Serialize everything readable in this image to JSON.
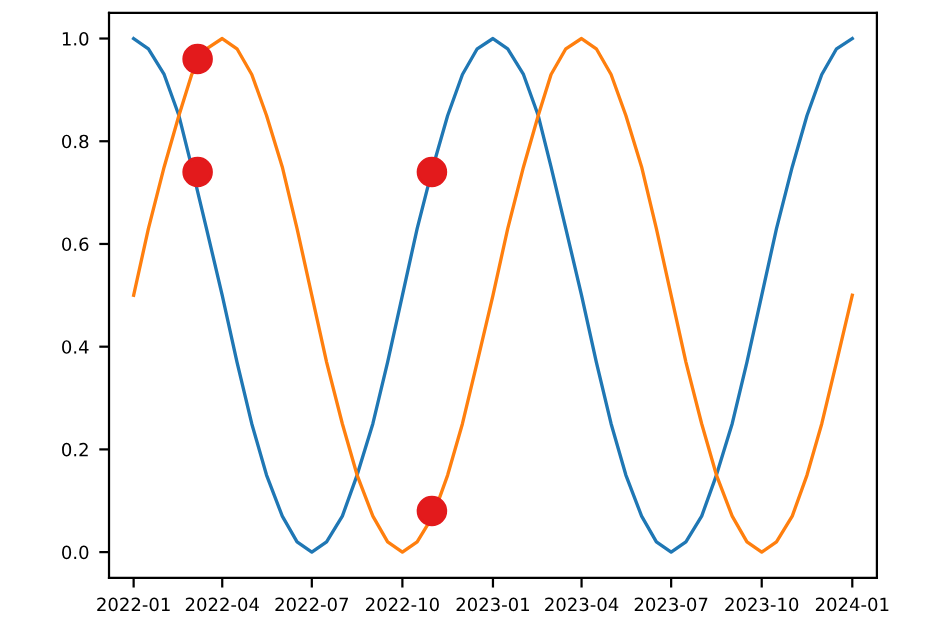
{
  "chart_data": {
    "type": "line",
    "x": [
      "2022-01-01",
      "2022-01-16",
      "2022-02-01",
      "2022-02-16",
      "2022-03-01",
      "2022-03-16",
      "2022-04-01",
      "2022-04-16",
      "2022-05-01",
      "2022-05-16",
      "2022-06-01",
      "2022-06-16",
      "2022-07-01",
      "2022-07-16",
      "2022-08-01",
      "2022-08-16",
      "2022-09-01",
      "2022-09-16",
      "2022-10-01",
      "2022-10-16",
      "2022-11-01",
      "2022-11-16",
      "2022-12-01",
      "2022-12-16",
      "2023-01-01",
      "2023-01-16",
      "2023-02-01",
      "2023-02-16",
      "2023-03-01",
      "2023-03-16",
      "2023-04-01",
      "2023-04-16",
      "2023-05-01",
      "2023-05-16",
      "2023-06-01",
      "2023-06-16",
      "2023-07-01",
      "2023-07-16",
      "2023-08-01",
      "2023-08-16",
      "2023-09-01",
      "2023-09-16",
      "2023-10-01",
      "2023-10-16",
      "2023-11-01",
      "2023-11-16",
      "2023-12-01",
      "2023-12-16",
      "2024-01-01"
    ],
    "series": [
      {
        "color": "#1f77b4",
        "values": [
          1.0,
          0.98,
          0.93,
          0.85,
          0.75,
          0.63,
          0.5,
          0.37,
          0.25,
          0.15,
          0.07,
          0.02,
          0.0,
          0.02,
          0.07,
          0.15,
          0.25,
          0.37,
          0.5,
          0.63,
          0.75,
          0.85,
          0.93,
          0.98,
          1.0,
          0.98,
          0.93,
          0.85,
          0.75,
          0.63,
          0.5,
          0.37,
          0.25,
          0.15,
          0.07,
          0.02,
          0.0,
          0.02,
          0.07,
          0.15,
          0.25,
          0.37,
          0.5,
          0.63,
          0.75,
          0.85,
          0.93,
          0.98,
          1.0
        ]
      },
      {
        "color": "#ff7f0e",
        "values": [
          0.5,
          0.63,
          0.75,
          0.85,
          0.93,
          0.98,
          1.0,
          0.98,
          0.93,
          0.85,
          0.75,
          0.63,
          0.5,
          0.37,
          0.25,
          0.15,
          0.07,
          0.02,
          0.0,
          0.02,
          0.07,
          0.15,
          0.25,
          0.37,
          0.5,
          0.63,
          0.75,
          0.85,
          0.93,
          0.98,
          1.0,
          0.98,
          0.93,
          0.85,
          0.75,
          0.63,
          0.5,
          0.37,
          0.25,
          0.15,
          0.07,
          0.02,
          0.0,
          0.02,
          0.07,
          0.15,
          0.25,
          0.37,
          0.5
        ]
      },
      {
        "type": "scatter",
        "color": "#e31a1c",
        "x": [
          "2022-03-07",
          "2022-03-07",
          "2022-10-31",
          "2022-10-31"
        ],
        "values": [
          0.96,
          0.74,
          0.74,
          0.08
        ]
      }
    ],
    "xlim": [
      "2021-12-07",
      "2024-01-26"
    ],
    "xticks": [
      "2022-01",
      "2022-04",
      "2022-07",
      "2022-10",
      "2023-01",
      "2023-04",
      "2023-07",
      "2023-10",
      "2024-01"
    ],
    "ylim": [
      -0.05,
      1.05
    ],
    "yticks": [
      {
        "value": 0,
        "label": "0.0"
      },
      {
        "value": 0.2,
        "label": "0.2"
      },
      {
        "value": 0.4,
        "label": "0.4"
      },
      {
        "value": 0.6,
        "label": "0.6"
      },
      {
        "value": 0.8,
        "label": "0.8"
      },
      {
        "value": 1,
        "label": "1.0"
      }
    ],
    "grid": false
  }
}
